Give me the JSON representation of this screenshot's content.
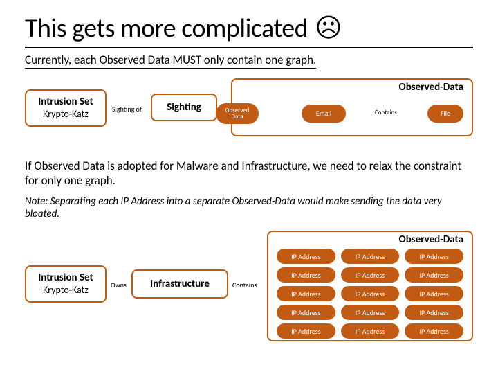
{
  "colors": {
    "accent": "#c15a12",
    "text": "#000000",
    "background": "#ffffff",
    "pill_text": "#ffffff"
  },
  "typography": {
    "title_fontsize": 38,
    "subtitle_fontsize": 17,
    "body_fontsize": 17,
    "note_fontsize": 15,
    "node_label_fontsize": 15,
    "pill_fontsize": 10,
    "edge_label_fontsize": 10
  },
  "title": "This gets more complicated",
  "sad_glyph": "☹",
  "subtitle": "Currently, each Observed Data MUST only contain one graph.",
  "diagram1": {
    "type": "flowchart",
    "nodes": {
      "intrusion": {
        "line1": "Intrusion Set",
        "line2": "Krypto-Katz",
        "shape": "rounded-rect",
        "border_color": "#c15a12"
      },
      "sighting": {
        "label": "Sighting",
        "shape": "rounded-rect",
        "border_color": "#c15a12"
      },
      "observed_data_container": {
        "label": "Observed-Data",
        "shape": "rounded-rect",
        "border_color": "#c15a12"
      },
      "observed_data_pill": {
        "label": "Observed Data",
        "shape": "pill",
        "fill": "#c15a12"
      },
      "email": {
        "label": "Email",
        "shape": "pill",
        "fill": "#c15a12"
      },
      "file": {
        "label": "File",
        "shape": "pill",
        "fill": "#c15a12"
      }
    },
    "edges": [
      {
        "from": "intrusion",
        "to": "sighting",
        "label": "Sighting of"
      },
      {
        "from": "email",
        "to": "file",
        "label": "Contains"
      }
    ]
  },
  "paragraph1": "If Observed Data is adopted for Malware and Infrastructure, we need to relax the constraint for only one graph.",
  "note": "Note: Separating each IP Address into a separate Observed-Data would make sending the data very bloated.",
  "diagram2": {
    "type": "flowchart",
    "nodes": {
      "intrusion": {
        "line1": "Intrusion Set",
        "line2": "Krypto-Katz",
        "shape": "rounded-rect",
        "border_color": "#c15a12"
      },
      "infrastructure": {
        "label": "Infrastructure",
        "shape": "rounded-rect",
        "border_color": "#c15a12"
      },
      "observed_data_container": {
        "label": "Observed-Data",
        "shape": "rounded-rect",
        "border_color": "#c15a12"
      }
    },
    "edges": [
      {
        "from": "intrusion",
        "to": "infrastructure",
        "label": "Owns"
      },
      {
        "from": "infrastructure",
        "to": "observed_data_container",
        "label": "Contains"
      }
    ],
    "ip_grid": {
      "rows": 5,
      "cols": 3,
      "label": "IP Address",
      "cell_shape": "pill",
      "cell_fill": "#c15a12",
      "cells": [
        "IP Address",
        "IP Address",
        "IP Address",
        "IP Address",
        "IP Address",
        "IP Address",
        "IP Address",
        "IP Address",
        "IP Address",
        "IP Address",
        "IP Address",
        "IP Address",
        "IP Address",
        "IP Address",
        "IP Address"
      ]
    }
  }
}
